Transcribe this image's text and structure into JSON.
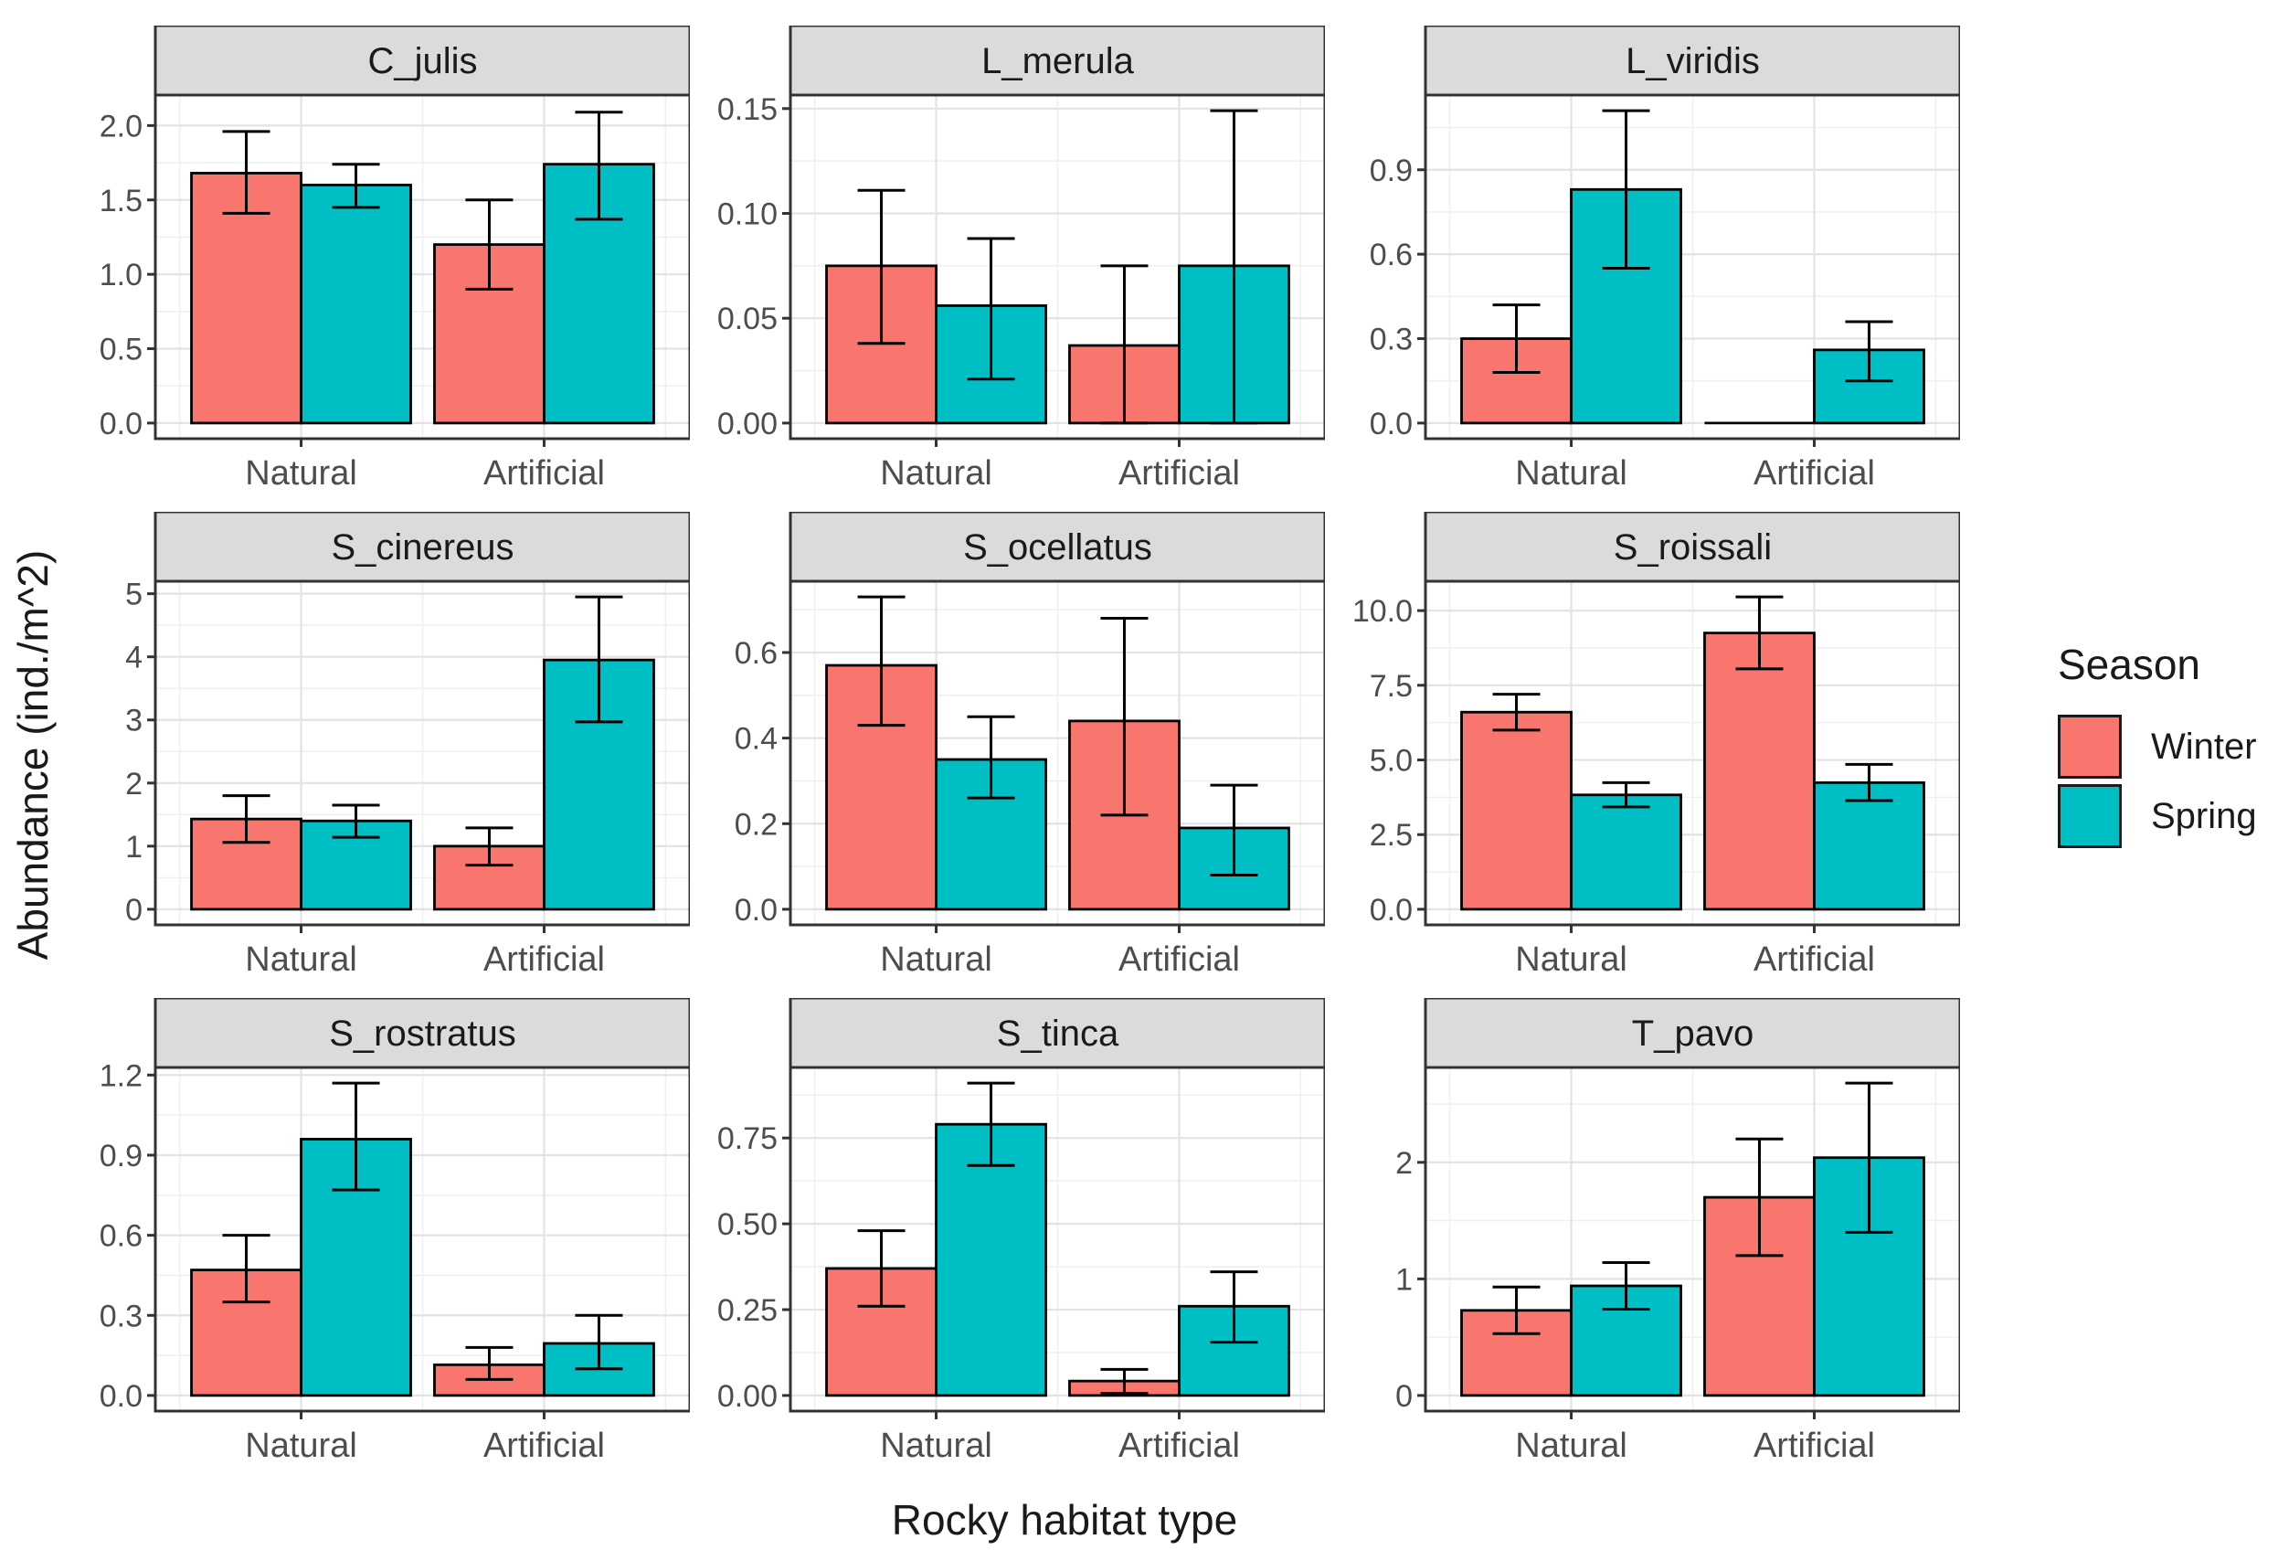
{
  "figure": {
    "y_axis_title": "Abundance (ind./m^2)",
    "x_axis_title": "Rocky habitat type",
    "legend": {
      "title": "Season",
      "items": [
        {
          "label": "Winter",
          "color": "#F8766D"
        },
        {
          "label": "Spring",
          "color": "#00BFC4"
        }
      ]
    }
  },
  "chart_data": {
    "type": "bar",
    "layout": "3x3 faceted grouped bar chart with error bars, free y scales, legend right",
    "categories": [
      "Natural",
      "Artificial"
    ],
    "series_names": [
      "Winter",
      "Spring"
    ],
    "colors": {
      "Winter": "#F8766D",
      "Spring": "#00BFC4"
    },
    "xlabel": "Rocky habitat type",
    "ylabel": "Abundance (ind./m^2)",
    "grid": true,
    "facets": [
      {
        "title": "C_julis",
        "ytick_values": [
          0,
          0.5,
          1.0,
          1.5,
          2.0
        ],
        "ytick_labels": [
          "0.0",
          "0.5",
          "1.0",
          "1.5",
          "2.0"
        ],
        "data_max": 2.1,
        "bars": [
          {
            "season": "Winter",
            "habitat": "Natural",
            "value": 1.68,
            "err_low": 1.41,
            "err_high": 1.96
          },
          {
            "season": "Spring",
            "habitat": "Natural",
            "value": 1.6,
            "err_low": 1.45,
            "err_high": 1.74
          },
          {
            "season": "Winter",
            "habitat": "Artificial",
            "value": 1.2,
            "err_low": 0.9,
            "err_high": 1.5
          },
          {
            "season": "Spring",
            "habitat": "Artificial",
            "value": 1.74,
            "err_low": 1.37,
            "err_high": 2.09
          }
        ]
      },
      {
        "title": "L_merula",
        "ytick_values": [
          0,
          0.05,
          0.1,
          0.15
        ],
        "ytick_labels": [
          "0.00",
          "0.05",
          "0.10",
          "0.15"
        ],
        "data_max": 0.149,
        "bars": [
          {
            "season": "Winter",
            "habitat": "Natural",
            "value": 0.075,
            "err_low": 0.038,
            "err_high": 0.111
          },
          {
            "season": "Spring",
            "habitat": "Natural",
            "value": 0.056,
            "err_low": 0.021,
            "err_high": 0.088
          },
          {
            "season": "Winter",
            "habitat": "Artificial",
            "value": 0.037,
            "err_low": 0.0,
            "err_high": 0.075
          },
          {
            "season": "Spring",
            "habitat": "Artificial",
            "value": 0.075,
            "err_low": 0.0,
            "err_high": 0.149
          }
        ]
      },
      {
        "title": "L_viridis",
        "ytick_values": [
          0,
          0.3,
          0.6,
          0.9
        ],
        "ytick_labels": [
          "0.0",
          "0.3",
          "0.6",
          "0.9"
        ],
        "data_max": 1.11,
        "bars": [
          {
            "season": "Winter",
            "habitat": "Natural",
            "value": 0.3,
            "err_low": 0.18,
            "err_high": 0.42
          },
          {
            "season": "Spring",
            "habitat": "Natural",
            "value": 0.83,
            "err_low": 0.55,
            "err_high": 1.11
          },
          {
            "season": "Winter",
            "habitat": "Artificial",
            "value": 0.0,
            "err_low": 0.0,
            "err_high": 0.0
          },
          {
            "season": "Spring",
            "habitat": "Artificial",
            "value": 0.26,
            "err_low": 0.15,
            "err_high": 0.36
          }
        ]
      },
      {
        "title": "S_cinereus",
        "ytick_values": [
          0,
          1,
          2,
          3,
          4,
          5
        ],
        "ytick_labels": [
          "0",
          "1",
          "2",
          "3",
          "4",
          "5"
        ],
        "data_max": 4.95,
        "bars": [
          {
            "season": "Winter",
            "habitat": "Natural",
            "value": 1.43,
            "err_low": 1.06,
            "err_high": 1.8
          },
          {
            "season": "Spring",
            "habitat": "Natural",
            "value": 1.4,
            "err_low": 1.14,
            "err_high": 1.65
          },
          {
            "season": "Winter",
            "habitat": "Artificial",
            "value": 1.0,
            "err_low": 0.7,
            "err_high": 1.29
          },
          {
            "season": "Spring",
            "habitat": "Artificial",
            "value": 3.95,
            "err_low": 2.97,
            "err_high": 4.95
          }
        ]
      },
      {
        "title": "S_ocellatus",
        "ytick_values": [
          0,
          0.2,
          0.4,
          0.6
        ],
        "ytick_labels": [
          "0.0",
          "0.2",
          "0.4",
          "0.6"
        ],
        "data_max": 0.73,
        "bars": [
          {
            "season": "Winter",
            "habitat": "Natural",
            "value": 0.57,
            "err_low": 0.43,
            "err_high": 0.73
          },
          {
            "season": "Spring",
            "habitat": "Natural",
            "value": 0.35,
            "err_low": 0.26,
            "err_high": 0.45
          },
          {
            "season": "Winter",
            "habitat": "Artificial",
            "value": 0.44,
            "err_low": 0.22,
            "err_high": 0.68
          },
          {
            "season": "Spring",
            "habitat": "Artificial",
            "value": 0.19,
            "err_low": 0.08,
            "err_high": 0.29
          }
        ]
      },
      {
        "title": "S_roissali",
        "ytick_values": [
          0,
          2.5,
          5.0,
          7.5,
          10.0
        ],
        "ytick_labels": [
          "0.0",
          "2.5",
          "5.0",
          "7.5",
          "10.0"
        ],
        "data_max": 10.46,
        "bars": [
          {
            "season": "Winter",
            "habitat": "Natural",
            "value": 6.6,
            "err_low": 6.0,
            "err_high": 7.2
          },
          {
            "season": "Spring",
            "habitat": "Natural",
            "value": 3.83,
            "err_low": 3.43,
            "err_high": 4.24
          },
          {
            "season": "Winter",
            "habitat": "Artificial",
            "value": 9.25,
            "err_low": 8.05,
            "err_high": 10.46
          },
          {
            "season": "Spring",
            "habitat": "Artificial",
            "value": 4.24,
            "err_low": 3.64,
            "err_high": 4.85
          }
        ]
      },
      {
        "title": "S_rostratus",
        "ytick_values": [
          0,
          0.3,
          0.6,
          0.9,
          1.2
        ],
        "ytick_labels": [
          "0.0",
          "0.3",
          "0.6",
          "0.9",
          "1.2"
        ],
        "data_max": 1.17,
        "bars": [
          {
            "season": "Winter",
            "habitat": "Natural",
            "value": 0.47,
            "err_low": 0.35,
            "err_high": 0.6
          },
          {
            "season": "Spring",
            "habitat": "Natural",
            "value": 0.96,
            "err_low": 0.77,
            "err_high": 1.17
          },
          {
            "season": "Winter",
            "habitat": "Artificial",
            "value": 0.115,
            "err_low": 0.06,
            "err_high": 0.18
          },
          {
            "season": "Spring",
            "habitat": "Artificial",
            "value": 0.195,
            "err_low": 0.1,
            "err_high": 0.3
          }
        ]
      },
      {
        "title": "S_tinca",
        "ytick_values": [
          0,
          0.25,
          0.5,
          0.75
        ],
        "ytick_labels": [
          "0.00",
          "0.25",
          "0.50",
          "0.75"
        ],
        "data_max": 0.91,
        "bars": [
          {
            "season": "Winter",
            "habitat": "Natural",
            "value": 0.37,
            "err_low": 0.26,
            "err_high": 0.48
          },
          {
            "season": "Spring",
            "habitat": "Natural",
            "value": 0.79,
            "err_low": 0.67,
            "err_high": 0.91
          },
          {
            "season": "Winter",
            "habitat": "Artificial",
            "value": 0.042,
            "err_low": 0.006,
            "err_high": 0.076
          },
          {
            "season": "Spring",
            "habitat": "Artificial",
            "value": 0.26,
            "err_low": 0.155,
            "err_high": 0.36
          }
        ]
      },
      {
        "title": "T_pavo",
        "ytick_values": [
          0,
          1,
          2
        ],
        "ytick_labels": [
          "0",
          "1",
          "2"
        ],
        "data_max": 2.68,
        "bars": [
          {
            "season": "Winter",
            "habitat": "Natural",
            "value": 0.73,
            "err_low": 0.53,
            "err_high": 0.93
          },
          {
            "season": "Spring",
            "habitat": "Natural",
            "value": 0.94,
            "err_low": 0.74,
            "err_high": 1.14
          },
          {
            "season": "Winter",
            "habitat": "Artificial",
            "value": 1.7,
            "err_low": 1.2,
            "err_high": 2.2
          },
          {
            "season": "Spring",
            "habitat": "Artificial",
            "value": 2.04,
            "err_low": 1.4,
            "err_high": 2.68
          }
        ]
      }
    ],
    "style": {
      "strip_fill": "#DBDBDB",
      "panel_border": "#333333",
      "grid_major": "#E3E3E3",
      "grid_minor": "#F0F0F0",
      "tick_text": "#4D4D4D",
      "bar_stroke": "#000000",
      "errorbar_stroke": "#000000"
    }
  }
}
